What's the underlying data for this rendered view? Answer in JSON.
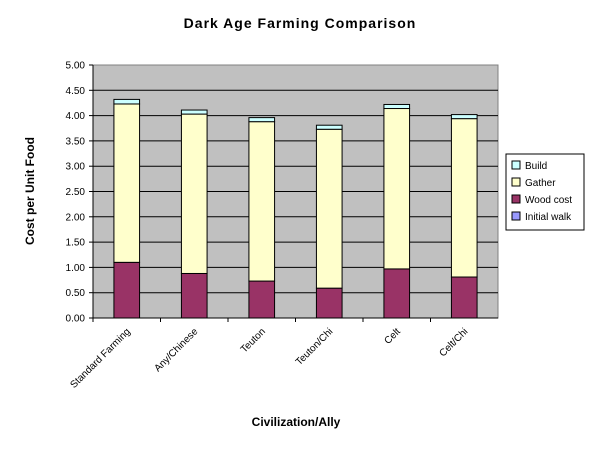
{
  "chart_data": {
    "type": "bar",
    "stacked": true,
    "title": "Dark Age Farming Comparison",
    "xlabel": "Civilization/Ally",
    "ylabel": "Cost per Unit Food",
    "ylim": [
      0,
      5
    ],
    "ytick_step": 0.5,
    "ytick_labels": [
      "0.00",
      "0.50",
      "1.00",
      "1.50",
      "2.00",
      "2.50",
      "3.00",
      "3.50",
      "4.00",
      "4.50",
      "5.00"
    ],
    "grid": true,
    "legend_position": "right",
    "categories": [
      "Standard Farming",
      "Any/Chinese",
      "Teuton",
      "Teuton/Chi",
      "Celt",
      "Celt/Chi"
    ],
    "series": [
      {
        "name": "Initial walk",
        "color": "#9999ff",
        "values": [
          0.0,
          0.0,
          0.0,
          0.0,
          0.0,
          0.0
        ]
      },
      {
        "name": "Wood cost",
        "color": "#993366",
        "values": [
          1.1,
          0.88,
          0.73,
          0.59,
          0.97,
          0.81
        ]
      },
      {
        "name": "Gather",
        "color": "#ffffcc",
        "values": [
          3.13,
          3.15,
          3.15,
          3.14,
          3.17,
          3.13
        ]
      },
      {
        "name": "Build",
        "color": "#ccffff",
        "values": [
          0.09,
          0.08,
          0.08,
          0.08,
          0.08,
          0.08
        ]
      }
    ],
    "legend_order": [
      "Build",
      "Gather",
      "Wood cost",
      "Initial walk"
    ],
    "plot_background": "#c0c0c0"
  }
}
